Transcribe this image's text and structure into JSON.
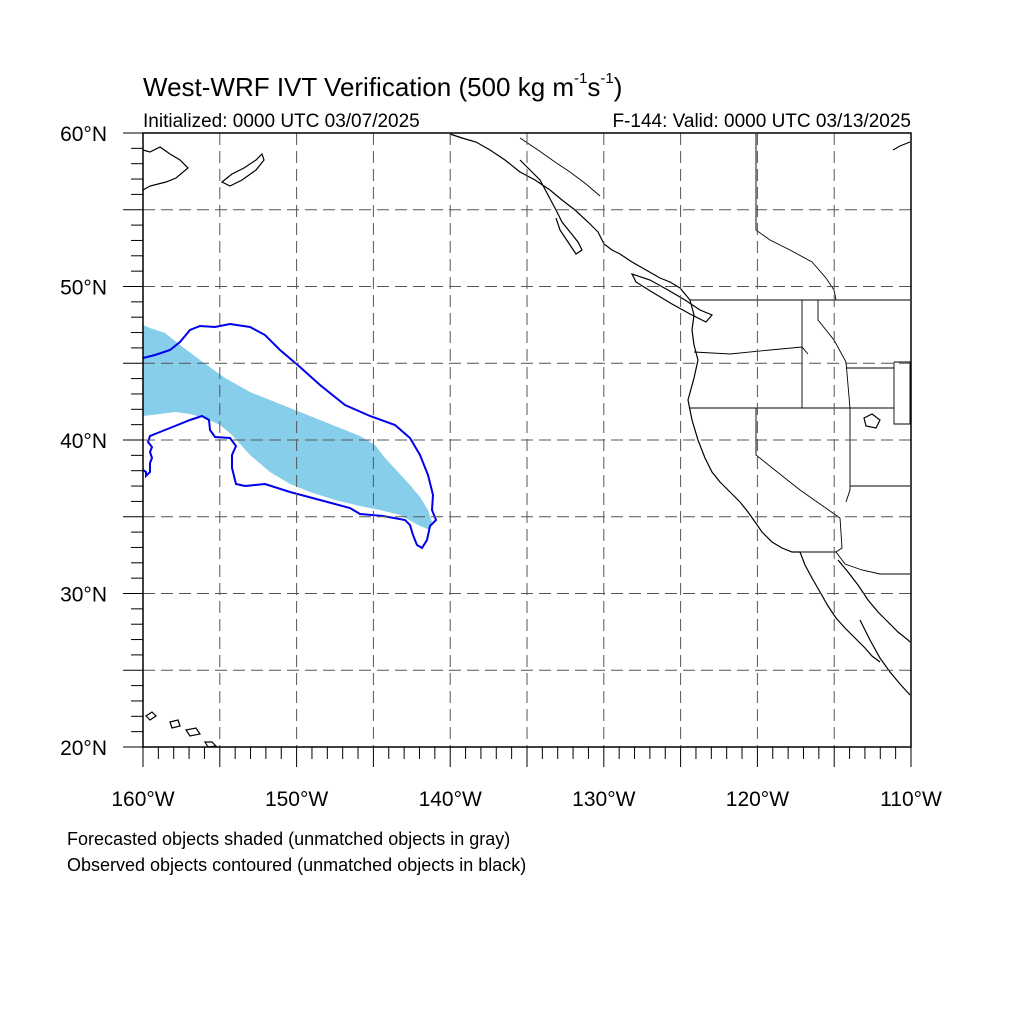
{
  "title": {
    "main": "West-WRF IVT Verification (500 kg m",
    "sup1": "-1",
    "mid": "s",
    "sup2": "-1",
    "end": ")"
  },
  "subtitle": {
    "left": "Initialized: 0000 UTC 03/07/2025",
    "right": "F-144: Valid: 0000 UTC 03/13/2025"
  },
  "map": {
    "lon_range": [
      -160,
      -110
    ],
    "lat_range": [
      20,
      60
    ],
    "grid_lons": [
      -155,
      -150,
      -145,
      -140,
      -135,
      -130,
      -125,
      -120,
      -115
    ],
    "grid_lats": [
      25,
      30,
      35,
      40,
      45,
      50,
      55
    ],
    "lon_labels": [
      {
        "lon": -160,
        "text": "160°W"
      },
      {
        "lon": -150,
        "text": "150°W"
      },
      {
        "lon": -140,
        "text": "140°W"
      },
      {
        "lon": -130,
        "text": "130°W"
      },
      {
        "lon": -120,
        "text": "120°W"
      },
      {
        "lon": -110,
        "text": "110°W"
      }
    ],
    "lat_labels": [
      {
        "lat": 60,
        "text": "60°N"
      },
      {
        "lat": 50,
        "text": "50°N"
      },
      {
        "lat": 40,
        "text": "40°N"
      },
      {
        "lat": 30,
        "text": "30°N"
      },
      {
        "lat": 20,
        "text": "20°N"
      }
    ],
    "colors": {
      "forecast_fill": "#87ceeb",
      "observed_contour": "#0000ee",
      "coastline": "#000000",
      "grid": "#555555"
    }
  },
  "notes": {
    "line1": "Forecasted objects shaded (unmatched objects in gray)",
    "line2": "Observed objects contoured (unmatched objects in black)"
  }
}
